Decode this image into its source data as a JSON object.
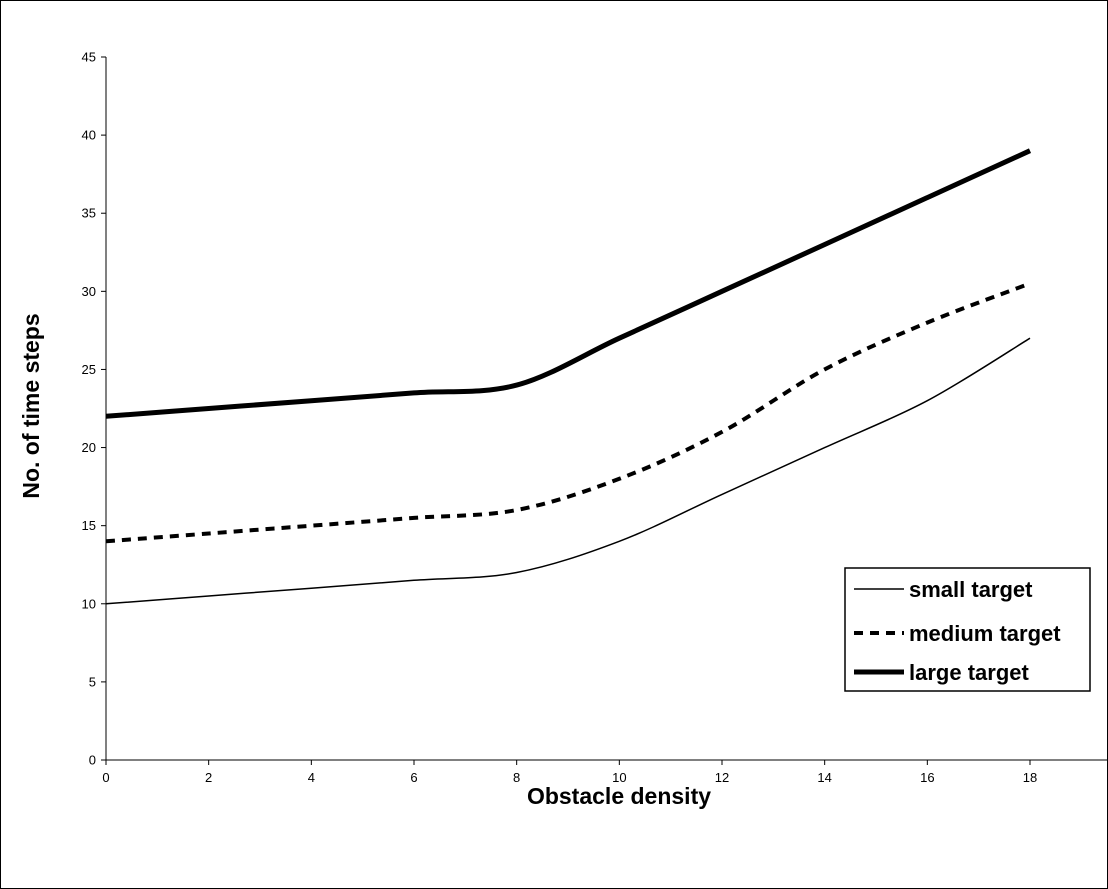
{
  "chart_data": {
    "type": "line",
    "xlabel": "Obstacle density",
    "ylabel": "No. of time steps",
    "xlim": [
      0,
      19
    ],
    "ylim": [
      0,
      45
    ],
    "xticks": [
      0,
      2,
      4,
      6,
      8,
      10,
      12,
      14,
      16,
      18
    ],
    "yticks": [
      0,
      5,
      10,
      15,
      20,
      25,
      30,
      35,
      40,
      45
    ],
    "grid": false,
    "legend_position": "bottom-right",
    "series": [
      {
        "name": "small target",
        "style": "thin-solid",
        "color": "#000000",
        "points": [
          [
            0,
            10
          ],
          [
            2,
            10.5
          ],
          [
            4,
            11
          ],
          [
            6,
            11.5
          ],
          [
            8,
            12
          ],
          [
            10,
            14
          ],
          [
            12,
            17
          ],
          [
            14,
            20
          ],
          [
            16,
            23
          ],
          [
            18,
            27
          ]
        ]
      },
      {
        "name": "medium target",
        "style": "dashed",
        "color": "#000000",
        "points": [
          [
            0,
            14
          ],
          [
            2,
            14.5
          ],
          [
            4,
            15
          ],
          [
            6,
            15.5
          ],
          [
            8,
            16
          ],
          [
            10,
            18
          ],
          [
            12,
            21
          ],
          [
            14,
            25
          ],
          [
            16,
            28
          ],
          [
            18,
            30.5
          ]
        ]
      },
      {
        "name": "large target",
        "style": "thick-solid",
        "color": "#000000",
        "points": [
          [
            0,
            22
          ],
          [
            2,
            22.5
          ],
          [
            4,
            23
          ],
          [
            6,
            23.5
          ],
          [
            8,
            24
          ],
          [
            10,
            27
          ],
          [
            12,
            30
          ],
          [
            14,
            33
          ],
          [
            16,
            36
          ],
          [
            18,
            39
          ]
        ]
      }
    ]
  }
}
